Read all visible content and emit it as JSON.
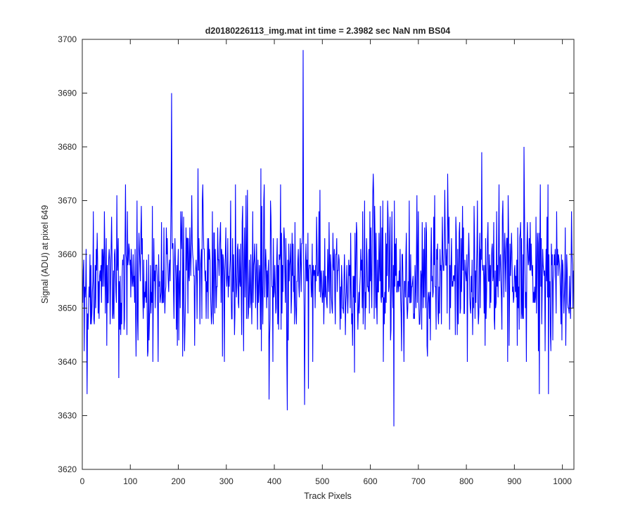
{
  "chart_data": {
    "type": "line",
    "title": "d20180226113_img.mat int time = 2.3982 sec  NaN nm BS04",
    "xlabel": "Track Pixels",
    "ylabel": "Signal (ADU) at pixel 649",
    "xlim": [
      0,
      1024
    ],
    "ylim": [
      3620,
      3700
    ],
    "xticks": [
      0,
      100,
      200,
      300,
      400,
      500,
      600,
      700,
      800,
      900,
      1000
    ],
    "yticks": [
      3620,
      3630,
      3640,
      3650,
      3660,
      3670,
      3680,
      3690,
      3700
    ],
    "grid": false,
    "legend": "none",
    "series": [
      {
        "color": "#0000ff",
        "baseline_mean": 3656,
        "noise_amplitude": 7,
        "num_points": 1024,
        "notable_points": [
          {
            "x": 1,
            "y": 3651
          },
          {
            "x": 10,
            "y": 3634
          },
          {
            "x": 76,
            "y": 3637
          },
          {
            "x": 186,
            "y": 3690
          },
          {
            "x": 209,
            "y": 3641
          },
          {
            "x": 241,
            "y": 3676
          },
          {
            "x": 372,
            "y": 3676
          },
          {
            "x": 389,
            "y": 3633
          },
          {
            "x": 427,
            "y": 3631
          },
          {
            "x": 460,
            "y": 3698
          },
          {
            "x": 463,
            "y": 3632
          },
          {
            "x": 471,
            "y": 3635
          },
          {
            "x": 567,
            "y": 3638
          },
          {
            "x": 606,
            "y": 3675
          },
          {
            "x": 649,
            "y": 3628
          },
          {
            "x": 761,
            "y": 3675
          },
          {
            "x": 832,
            "y": 3679
          },
          {
            "x": 920,
            "y": 3680
          },
          {
            "x": 952,
            "y": 3634
          },
          {
            "x": 971,
            "y": 3634
          },
          {
            "x": 1023,
            "y": 3657
          }
        ]
      }
    ]
  }
}
